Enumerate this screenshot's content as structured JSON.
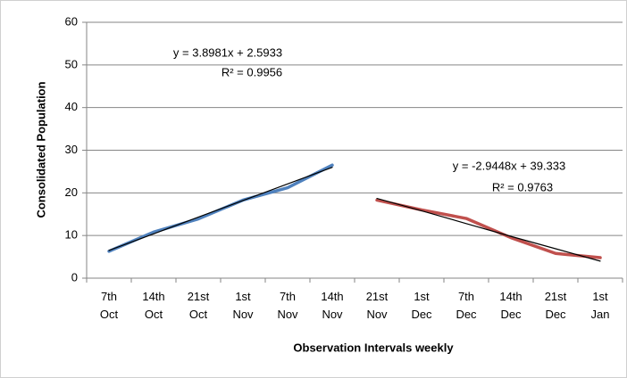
{
  "chart_data": {
    "type": "line",
    "x_label": "Observation Intervals weekly",
    "y_label": "Consolidated Population",
    "categories": [
      "7th Oct",
      "14th Oct",
      "21st Oct",
      "1st Nov",
      "7th Nov",
      "14th Nov",
      "21st Nov",
      "1st Dec",
      "7th Dec",
      "14th Dec",
      "21st Dec",
      "1st Jan"
    ],
    "series": [
      {
        "color": "#4f81bd",
        "values": [
          6.3,
          10.8,
          13.9,
          18.3,
          21.2,
          26.5,
          null,
          null,
          null,
          null,
          null,
          null
        ]
      },
      {
        "color": "#c0504d",
        "values": [
          null,
          null,
          null,
          null,
          null,
          null,
          18.3,
          16.0,
          14.0,
          9.5,
          5.8,
          4.8
        ]
      }
    ],
    "trendlines": [
      {
        "equation": "y = 3.8981x + 2.5933",
        "r2": "R² = 0.9956",
        "color": "#000000",
        "values": [
          6.5,
          10.4,
          14.3,
          18.2,
          22.1,
          26.0,
          null,
          null,
          null,
          null,
          null,
          null
        ]
      },
      {
        "equation": "y = -2.9448x + 39.333",
        "r2": "R² = 0.9763",
        "color": "#000000",
        "values": [
          null,
          null,
          null,
          null,
          null,
          null,
          18.7,
          15.8,
          12.8,
          9.8,
          6.9,
          4.0
        ]
      }
    ],
    "ylim": [
      0,
      60
    ],
    "yticks": [
      0,
      10,
      20,
      30,
      40,
      50,
      60
    ],
    "grid": true
  }
}
